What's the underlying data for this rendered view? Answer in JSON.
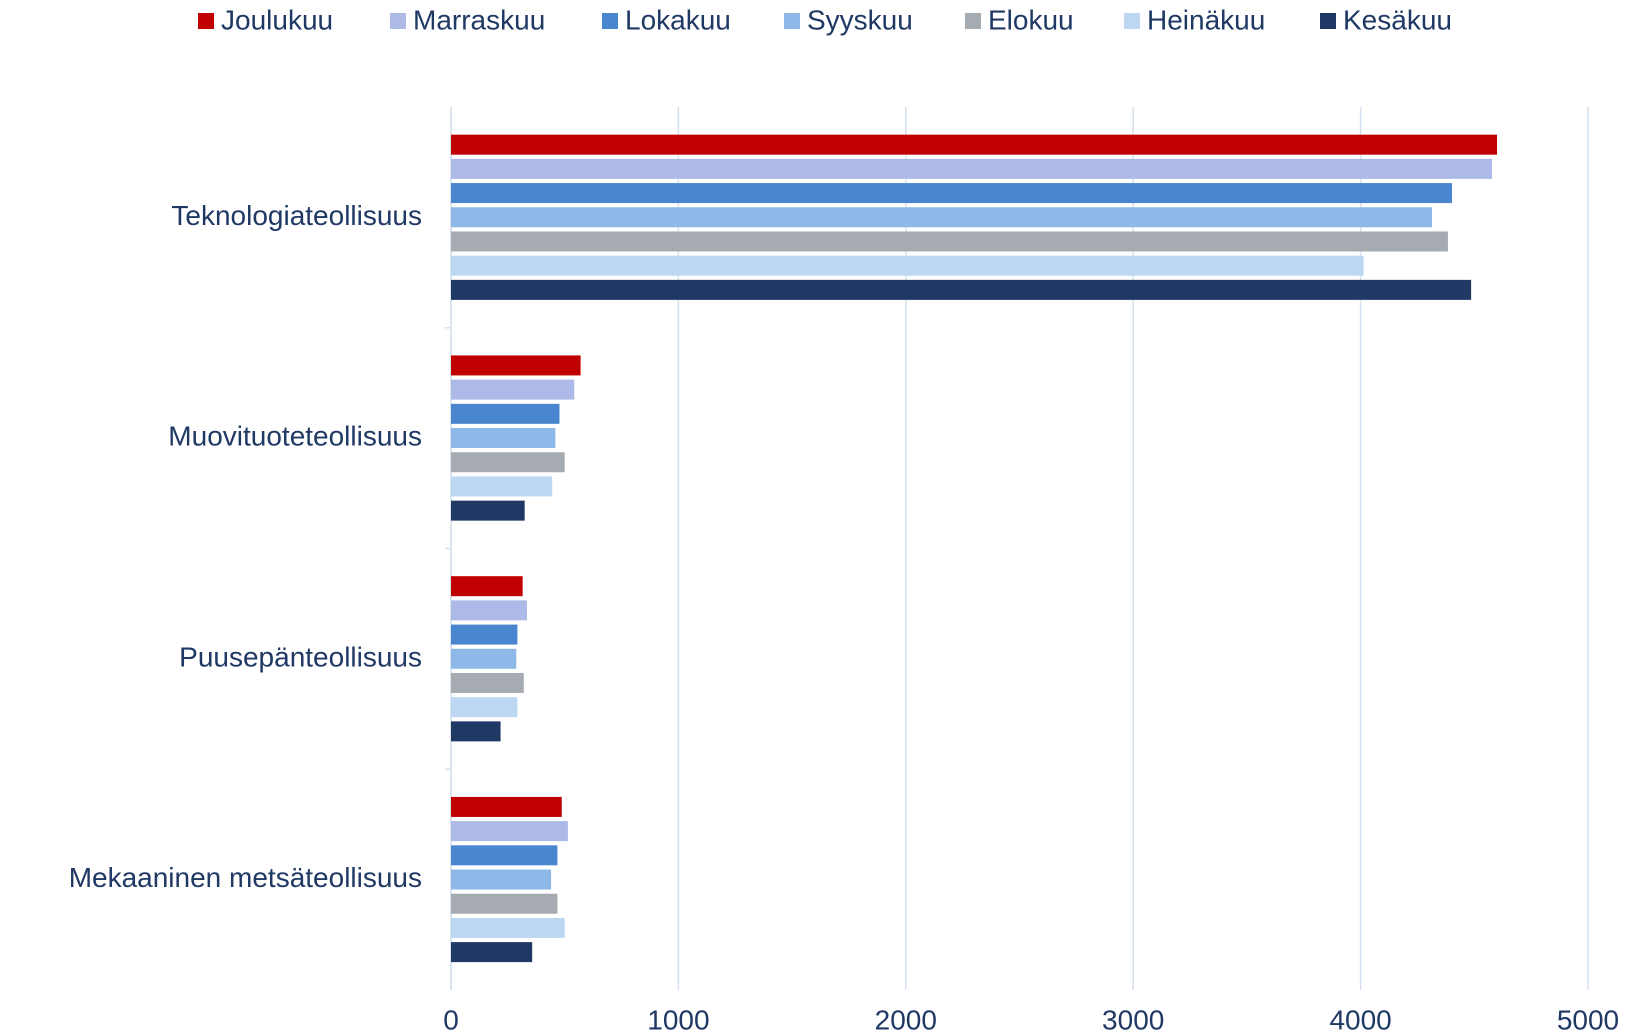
{
  "chart_data": {
    "type": "barh",
    "categories": [
      "Teknologiateollisuus",
      "Muovituoteteollisuus",
      "Puusepänteollisuus",
      "Mekaaninen metsäteollisuus"
    ],
    "series": [
      {
        "name": "Joulukuu",
        "color": "#c00000",
        "values": [
          4600,
          570,
          315,
          487
        ]
      },
      {
        "name": "Marraskuu",
        "color": "#adb9e6",
        "values": [
          4578,
          542,
          334,
          514
        ]
      },
      {
        "name": "Lokakuu",
        "color": "#4a86d0",
        "values": [
          4402,
          477,
          292,
          468
        ]
      },
      {
        "name": "Syyskuu",
        "color": "#8db8e8",
        "values": [
          4314,
          459,
          287,
          440
        ]
      },
      {
        "name": "Elokuu",
        "color": "#a5abb0",
        "values": [
          4384,
          500,
          320,
          468
        ]
      },
      {
        "name": "Heinäkuu",
        "color": "#bdd7f3",
        "values": [
          4013,
          445,
          292,
          500
        ]
      },
      {
        "name": "Kesäkuu",
        "color": "#1f3864",
        "values": [
          4486,
          324,
          218,
          357
        ]
      }
    ],
    "xlim": [
      0,
      5000
    ],
    "xticks": [
      0,
      1000,
      2000,
      3000,
      4000,
      5000
    ],
    "grid": true,
    "legend": "top"
  }
}
